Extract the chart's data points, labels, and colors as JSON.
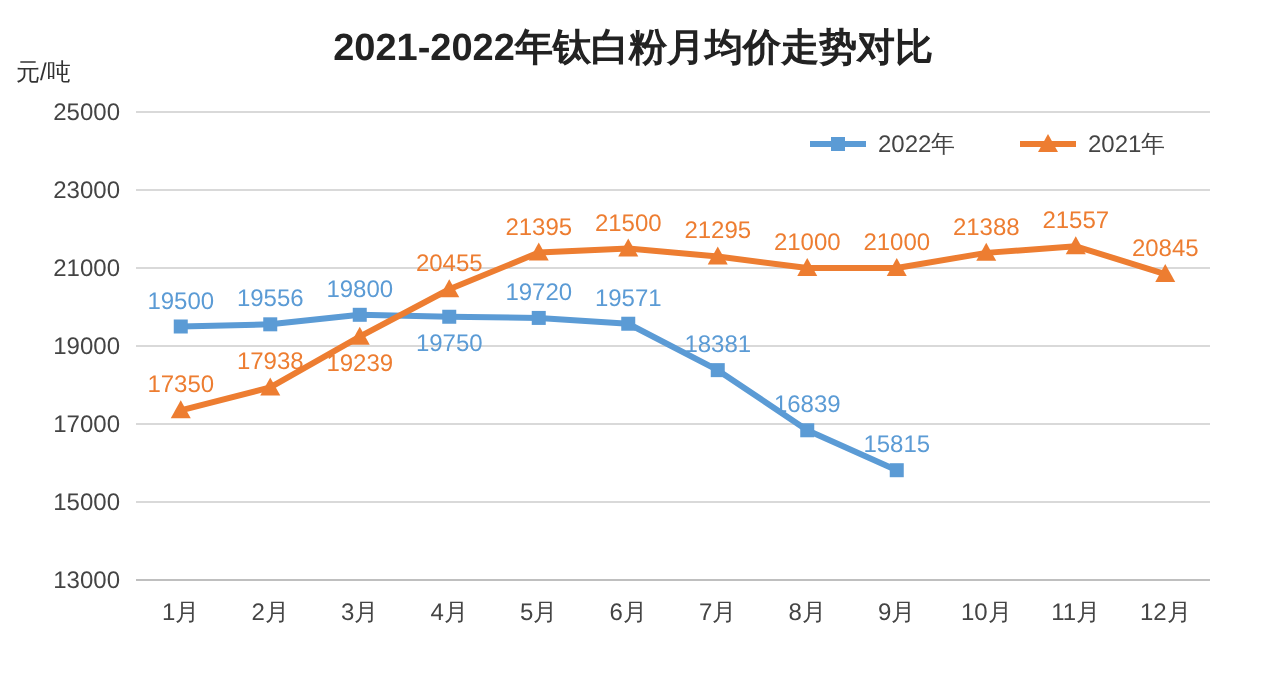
{
  "chart_data": {
    "type": "line",
    "title": "2021-2022年钛白粉月均价走势对比",
    "ylabel": "元/吨",
    "categories": [
      "1月",
      "2月",
      "3月",
      "4月",
      "5月",
      "6月",
      "7月",
      "8月",
      "9月",
      "10月",
      "11月",
      "12月"
    ],
    "series": [
      {
        "name": "2022年",
        "color": "#5b9bd5",
        "marker": "square",
        "values": [
          19500,
          19556,
          19800,
          19750,
          19720,
          19571,
          18381,
          16839,
          15815,
          null,
          null,
          null
        ]
      },
      {
        "name": "2021年",
        "color": "#ed7d31",
        "marker": "triangle",
        "values": [
          17350,
          17938,
          19239,
          20455,
          21395,
          21500,
          21295,
          21000,
          21000,
          21388,
          21557,
          20845
        ]
      }
    ],
    "ylim": [
      13000,
      25000
    ],
    "yticks": [
      13000,
      15000,
      17000,
      19000,
      21000,
      23000,
      25000
    ],
    "grid": "y",
    "legend": "top right",
    "data_labels": true
  }
}
